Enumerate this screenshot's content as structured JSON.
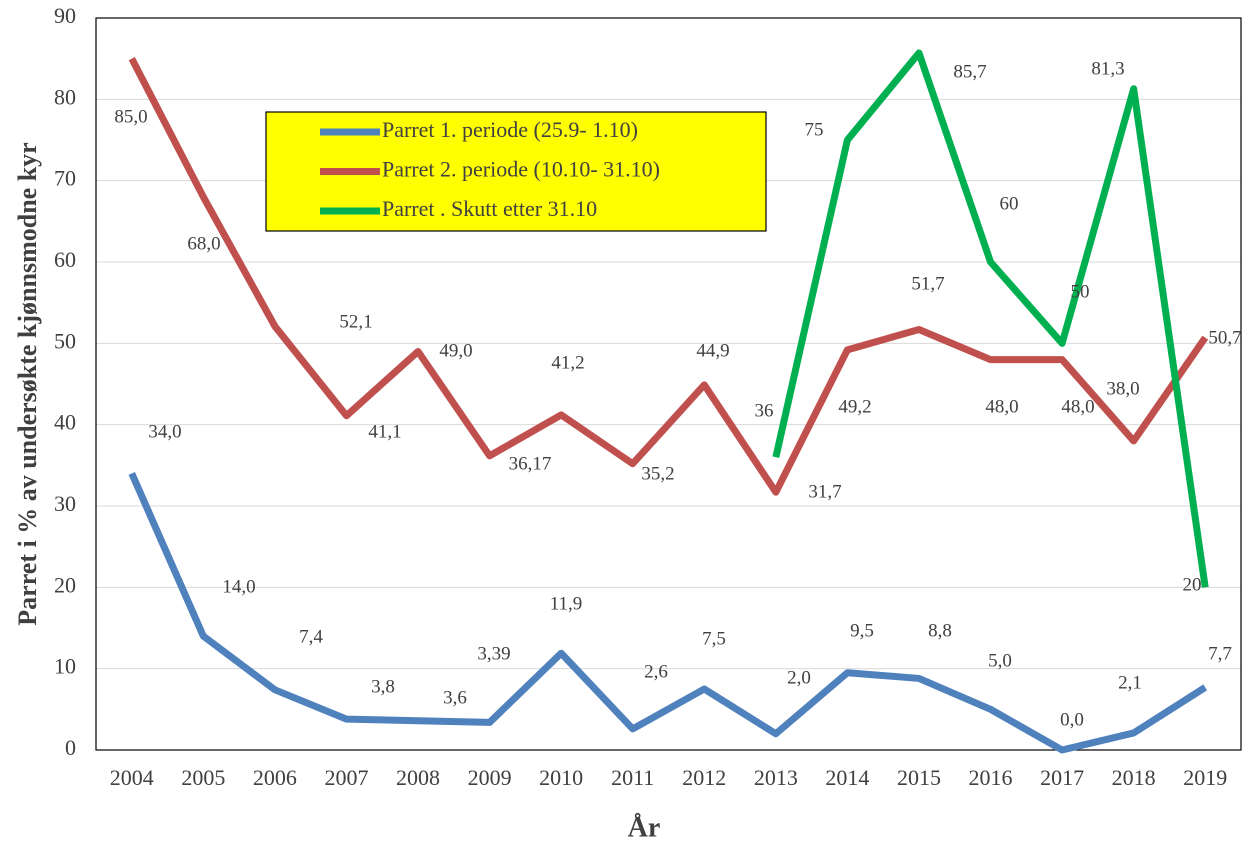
{
  "chart_data": {
    "type": "line",
    "x_label": "År",
    "y_label": "Parret i % av undersøkte kjønnsmodne kyr",
    "categories": [
      "2004",
      "2005",
      "2006",
      "2007",
      "2008",
      "2009",
      "2010",
      "2011",
      "2012",
      "2013",
      "2014",
      "2015",
      "2016",
      "2017",
      "2018",
      "2019"
    ],
    "series": [
      {
        "name": "Parret 1. periode (25.9- 1.10)",
        "color": "#4f81bd",
        "values": [
          34,
          14,
          7.4,
          3.8,
          3.6,
          3.39,
          11.9,
          2.6,
          7.5,
          2.0,
          9.5,
          8.8,
          5.0,
          0.0,
          2.1,
          7.7
        ],
        "value_labels": [
          "34,0",
          "14,0",
          "7,4",
          "3,8",
          "3,6",
          "3,39",
          "11,9",
          "2,6",
          "7,5",
          "2,0",
          "9,5",
          "8,8",
          "5,0",
          "0,0",
          "2,1",
          "7,7"
        ]
      },
      {
        "name": "Parret 2. periode (10.10- 31.10)",
        "color": "#c0504d",
        "values": [
          85,
          68,
          52.1,
          41.1,
          49,
          36.17,
          41.2,
          35.2,
          44.9,
          31.7,
          49.2,
          51.7,
          48,
          48,
          38,
          50.7
        ],
        "value_labels": [
          "85,0",
          "68,0",
          "52,1",
          "41,1",
          "49,0",
          "36,17",
          "41,2",
          "35,2",
          "44,9",
          "31,7",
          "49,2",
          "51,7",
          "48,0",
          "48,0",
          "38,0",
          "50,7"
        ]
      },
      {
        "name": "Parret . Skutt etter 31.10",
        "color": "#00b050",
        "values": [
          null,
          null,
          null,
          null,
          null,
          null,
          null,
          null,
          null,
          36,
          75,
          85.7,
          60,
          50,
          81.3,
          20
        ],
        "value_labels": [
          null,
          null,
          null,
          null,
          null,
          null,
          null,
          null,
          null,
          "36",
          "75",
          "85,7",
          "60",
          "50",
          "81,3",
          "20"
        ]
      }
    ],
    "ylim": [
      0,
      90
    ],
    "yticks": [
      0,
      10,
      20,
      30,
      40,
      50,
      60,
      70,
      80,
      90
    ],
    "grid": true,
    "legend": {
      "background": "#ffff00"
    }
  }
}
